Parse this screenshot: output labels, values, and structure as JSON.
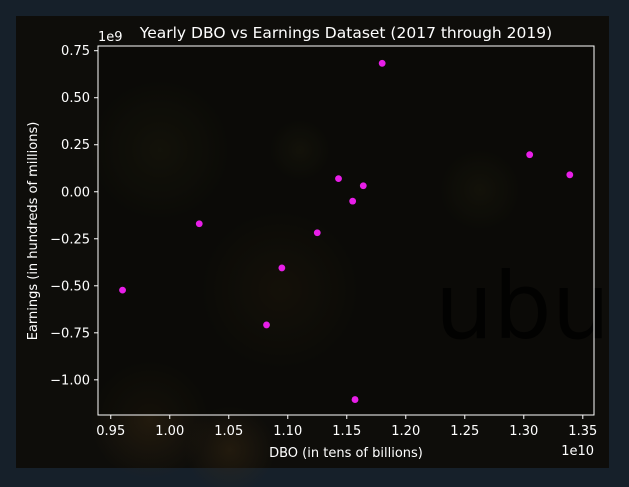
{
  "chart_data": {
    "type": "scatter",
    "title": "Yearly DBO vs Earnings Dataset (2017 through 2019)",
    "xlabel": "DBO (in tens of billions)",
    "ylabel": "Earnings (in hundreds of millions)",
    "x_offset_label": "1e10",
    "y_offset_label": "1e9",
    "xlim": [
      0.9392,
      1.3595
    ],
    "ylim": [
      -1.187,
      0.775
    ],
    "x_ticks": [
      0.95,
      1.0,
      1.05,
      1.1,
      1.15,
      1.2,
      1.25,
      1.3,
      1.35
    ],
    "y_ticks": [
      0.75,
      0.5,
      0.25,
      0.0,
      -0.25,
      -0.5,
      -0.75,
      -1.0
    ],
    "x_tick_labels": [
      "0.95",
      "1.00",
      "1.05",
      "1.10",
      "1.15",
      "1.20",
      "1.25",
      "1.30",
      "1.35"
    ],
    "y_tick_labels": [
      "0.75",
      "0.50",
      "0.25",
      "0.00",
      "−0.25",
      "−0.50",
      "−0.75",
      "−1.00"
    ],
    "grid": false,
    "marker_color": "#e81ee8",
    "points": [
      {
        "x": 0.96,
        "y": -0.523
      },
      {
        "x": 1.025,
        "y": -0.17
      },
      {
        "x": 1.082,
        "y": -0.708
      },
      {
        "x": 1.095,
        "y": -0.405
      },
      {
        "x": 1.125,
        "y": -0.218
      },
      {
        "x": 1.143,
        "y": 0.07
      },
      {
        "x": 1.155,
        "y": -0.05
      },
      {
        "x": 1.157,
        "y": -1.105
      },
      {
        "x": 1.164,
        "y": 0.032
      },
      {
        "x": 1.18,
        "y": 0.683
      },
      {
        "x": 1.305,
        "y": 0.197
      },
      {
        "x": 1.339,
        "y": 0.09
      }
    ]
  },
  "watermark": "ubu",
  "colors": {
    "page_bg": "#16202a",
    "figure_bg": "#0e0d0a",
    "axes_bg": "#0a0906",
    "foreground": "#ffffff"
  }
}
